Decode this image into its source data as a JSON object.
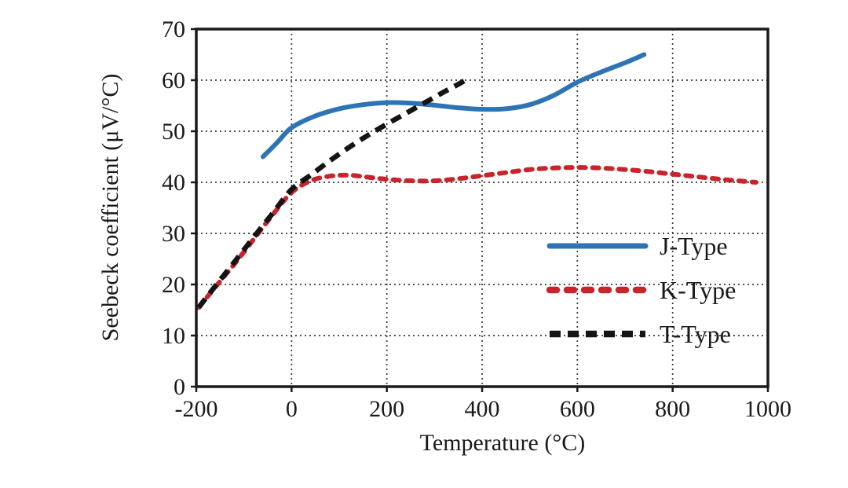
{
  "figure": {
    "background": "#ffffff",
    "text_color": "#1a1a1a",
    "border_color": "#1a1a1a",
    "grid_color": "#3a3a3a"
  },
  "chart_data": {
    "type": "line",
    "title": "",
    "xlabel": "Temperature (°C)",
    "ylabel": "Seebeck coefficient (μV/°C)",
    "xlim": [
      -200,
      1000
    ],
    "ylim": [
      0,
      70
    ],
    "x_ticks": [
      -200,
      0,
      200,
      400,
      600,
      800,
      1000
    ],
    "y_ticks": [
      0,
      10,
      20,
      30,
      40,
      50,
      60,
      70
    ],
    "x_gridlines": [
      0,
      200,
      400,
      600,
      800
    ],
    "y_gridlines": [
      10,
      20,
      30,
      40,
      50,
      60
    ],
    "grid": "dotted",
    "legend_position": "inside-right",
    "series": [
      {
        "name": "J-Type",
        "color": "#2E74B5",
        "style": "solid",
        "points": [
          [
            -60,
            45
          ],
          [
            -30,
            47.8
          ],
          [
            0,
            50.7
          ],
          [
            50,
            53
          ],
          [
            100,
            54.4
          ],
          [
            150,
            55.2
          ],
          [
            200,
            55.6
          ],
          [
            250,
            55.5
          ],
          [
            300,
            55.1
          ],
          [
            350,
            54.6
          ],
          [
            400,
            54.3
          ],
          [
            450,
            54.4
          ],
          [
            500,
            55.2
          ],
          [
            550,
            57
          ],
          [
            600,
            59.6
          ],
          [
            650,
            61.6
          ],
          [
            700,
            63.4
          ],
          [
            740,
            65
          ]
        ]
      },
      {
        "name": "K-Type",
        "color": "#C9242B",
        "style": "dotted",
        "points": [
          [
            -195,
            15.5
          ],
          [
            -160,
            19.5
          ],
          [
            -120,
            24
          ],
          [
            -80,
            28.8
          ],
          [
            -40,
            33.6
          ],
          [
            0,
            38
          ],
          [
            40,
            40.3
          ],
          [
            80,
            41.2
          ],
          [
            120,
            41.4
          ],
          [
            160,
            41
          ],
          [
            200,
            40.6
          ],
          [
            250,
            40.3
          ],
          [
            300,
            40.3
          ],
          [
            350,
            40.7
          ],
          [
            400,
            41.3
          ],
          [
            450,
            41.9
          ],
          [
            500,
            42.5
          ],
          [
            550,
            42.8
          ],
          [
            600,
            42.9
          ],
          [
            650,
            42.8
          ],
          [
            700,
            42.5
          ],
          [
            750,
            42.1
          ],
          [
            800,
            41.6
          ],
          [
            850,
            41.1
          ],
          [
            900,
            40.6
          ],
          [
            950,
            40.2
          ],
          [
            975,
            40
          ]
        ]
      },
      {
        "name": "T-Type",
        "color": "#141414",
        "style": "dashed",
        "points": [
          [
            -195,
            15.5
          ],
          [
            -160,
            19.7
          ],
          [
            -120,
            24.4
          ],
          [
            -80,
            29.2
          ],
          [
            -40,
            33.9
          ],
          [
            0,
            38.6
          ],
          [
            40,
            41.4
          ],
          [
            80,
            44.2
          ],
          [
            120,
            46.8
          ],
          [
            160,
            49.2
          ],
          [
            200,
            51.4
          ],
          [
            240,
            53.5
          ],
          [
            280,
            55.6
          ],
          [
            320,
            57.7
          ],
          [
            350,
            59.2
          ],
          [
            365,
            60
          ]
        ]
      }
    ]
  }
}
